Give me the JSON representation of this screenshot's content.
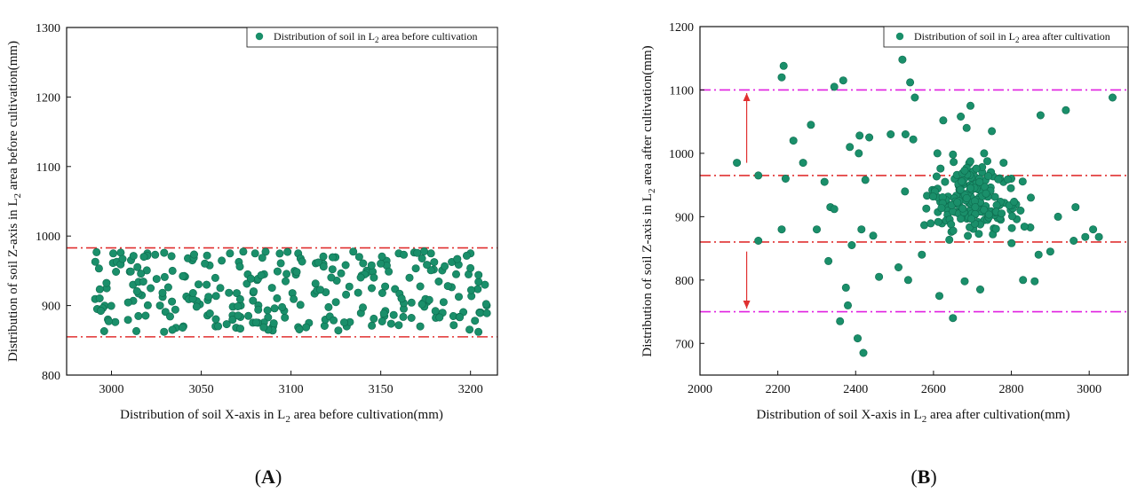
{
  "chart_data": [
    {
      "type": "scatter",
      "panel_label": "A",
      "legend": {
        "pre": "Distribution of soil in L",
        "sub": "2",
        "post": " area before cultivation",
        "placement": "top-right"
      },
      "xlabel": {
        "pre": "Distribution of soil X-axis in L",
        "sub": "2",
        "post": " area before cultivation(mm)"
      },
      "ylabel": {
        "pre": "Distribution of soil Z-axis in L",
        "sub": "2",
        "post": " area before cultivation(mm)"
      },
      "xlim": [
        2975,
        3215
      ],
      "ylim": [
        800,
        1300
      ],
      "xticks": [
        3000,
        3050,
        3100,
        3150,
        3200
      ],
      "yticks": [
        800,
        900,
        1000,
        1100,
        1200,
        1300
      ],
      "hlines": [
        {
          "y": 983,
          "color": "#e03030",
          "style": "dashdot"
        },
        {
          "y": 855,
          "color": "#e03030",
          "style": "dashdot"
        }
      ],
      "marker_color": "#1a8f6a",
      "cluster": {
        "x_range": [
          2990,
          3210
        ],
        "y_range": [
          862,
          978
        ],
        "n": 260,
        "seed": 7
      },
      "points": [
        [
          2991,
          963
        ],
        [
          2992,
          895
        ],
        [
          2998,
          880
        ],
        [
          3001,
          975
        ],
        [
          3005,
          960
        ],
        [
          3012,
          930
        ],
        [
          3015,
          885
        ],
        [
          3020,
          975
        ],
        [
          3027,
          900
        ],
        [
          3034,
          950
        ],
        [
          3040,
          870
        ],
        [
          3045,
          965
        ],
        [
          3053,
          930
        ],
        [
          3058,
          870
        ],
        [
          3066,
          975
        ],
        [
          3072,
          900
        ],
        [
          3080,
          975
        ],
        [
          3085,
          945
        ],
        [
          3090,
          870
        ],
        [
          3097,
          935
        ],
        [
          3104,
          975
        ],
        [
          3110,
          875
        ],
        [
          3118,
          960
        ],
        [
          3125,
          905
        ],
        [
          3131,
          870
        ],
        [
          3138,
          970
        ],
        [
          3145,
          925
        ],
        [
          3152,
          885
        ],
        [
          3160,
          975
        ],
        [
          3166,
          940
        ],
        [
          3172,
          870
        ],
        [
          3178,
          975
        ],
        [
          3185,
          905
        ],
        [
          3192,
          945
        ],
        [
          3200,
          975
        ],
        [
          3205,
          890
        ],
        [
          3208,
          930
        ],
        [
          3209,
          900
        ]
      ]
    },
    {
      "type": "scatter",
      "panel_label": "B",
      "legend": {
        "pre": "Distribution of soil in L",
        "sub": "2",
        "post": " area after cultivation",
        "placement": "top-right"
      },
      "xlabel": {
        "pre": "Distribution of soil X-axis in L",
        "sub": "2",
        "post": " area after cultivation(mm)"
      },
      "ylabel": {
        "pre": "Distribution of soil Z-axis in L",
        "sub": "2",
        "post": " area after cultivation(mm)"
      },
      "xlim": [
        2000,
        3100
      ],
      "ylim": [
        650,
        1200
      ],
      "xticks": [
        2000,
        2200,
        2400,
        2600,
        2800,
        3000
      ],
      "yticks": [
        700,
        800,
        900,
        1000,
        1100,
        1200
      ],
      "hlines": [
        {
          "y": 1100,
          "color": "#e020e0",
          "style": "dashdot"
        },
        {
          "y": 965,
          "color": "#e03030",
          "style": "dashdot"
        },
        {
          "y": 860,
          "color": "#e03030",
          "style": "dashdot"
        },
        {
          "y": 750,
          "color": "#e020e0",
          "style": "dashdot"
        }
      ],
      "arrows": [
        {
          "x": 2120,
          "from": 985,
          "to": 1095,
          "color": "#e03030"
        },
        {
          "x": 2120,
          "from": 845,
          "to": 755,
          "color": "#e03030"
        }
      ],
      "marker_color": "#1a8f6a",
      "cluster": {
        "x_range": [
          2440,
          2960
        ],
        "y_range": [
          800,
          1050
        ],
        "n": 200,
        "seed": 11
      },
      "points": [
        [
          2095,
          985
        ],
        [
          2150,
          965
        ],
        [
          2150,
          862
        ],
        [
          2210,
          1120
        ],
        [
          2215,
          1138
        ],
        [
          2210,
          880
        ],
        [
          2220,
          960
        ],
        [
          2240,
          1020
        ],
        [
          2265,
          985
        ],
        [
          2285,
          1045
        ],
        [
          2300,
          880
        ],
        [
          2320,
          955
        ],
        [
          2330,
          830
        ],
        [
          2335,
          915
        ],
        [
          2345,
          1105
        ],
        [
          2345,
          912
        ],
        [
          2360,
          735
        ],
        [
          2368,
          1115
        ],
        [
          2375,
          788
        ],
        [
          2380,
          760
        ],
        [
          2385,
          1010
        ],
        [
          2390,
          855
        ],
        [
          2405,
          708
        ],
        [
          2408,
          1000
        ],
        [
          2410,
          1028
        ],
        [
          2415,
          880
        ],
        [
          2420,
          685
        ],
        [
          2425,
          958
        ],
        [
          2435,
          1025
        ],
        [
          2445,
          870
        ],
        [
          2460,
          805
        ],
        [
          2490,
          1030
        ],
        [
          2510,
          820
        ],
        [
          2520,
          1148
        ],
        [
          2528,
          1030
        ],
        [
          2535,
          800
        ],
        [
          2540,
          1112
        ],
        [
          2548,
          1022
        ],
        [
          2552,
          1088
        ],
        [
          2570,
          840
        ],
        [
          2610,
          1000
        ],
        [
          2615,
          775
        ],
        [
          2625,
          1052
        ],
        [
          2650,
          740
        ],
        [
          2650,
          998
        ],
        [
          2670,
          1058
        ],
        [
          2680,
          798
        ],
        [
          2685,
          1040
        ],
        [
          2695,
          1075
        ],
        [
          2720,
          785
        ],
        [
          2730,
          1000
        ],
        [
          2750,
          1035
        ],
        [
          2780,
          985
        ],
        [
          2800,
          960
        ],
        [
          2830,
          800
        ],
        [
          2850,
          930
        ],
        [
          2860,
          798
        ],
        [
          2870,
          840
        ],
        [
          2875,
          1060
        ],
        [
          2900,
          845
        ],
        [
          2920,
          900
        ],
        [
          2940,
          1068
        ],
        [
          2960,
          862
        ],
        [
          2965,
          915
        ],
        [
          2990,
          868
        ],
        [
          3010,
          880
        ],
        [
          3025,
          868
        ],
        [
          3060,
          1088
        ]
      ]
    }
  ]
}
